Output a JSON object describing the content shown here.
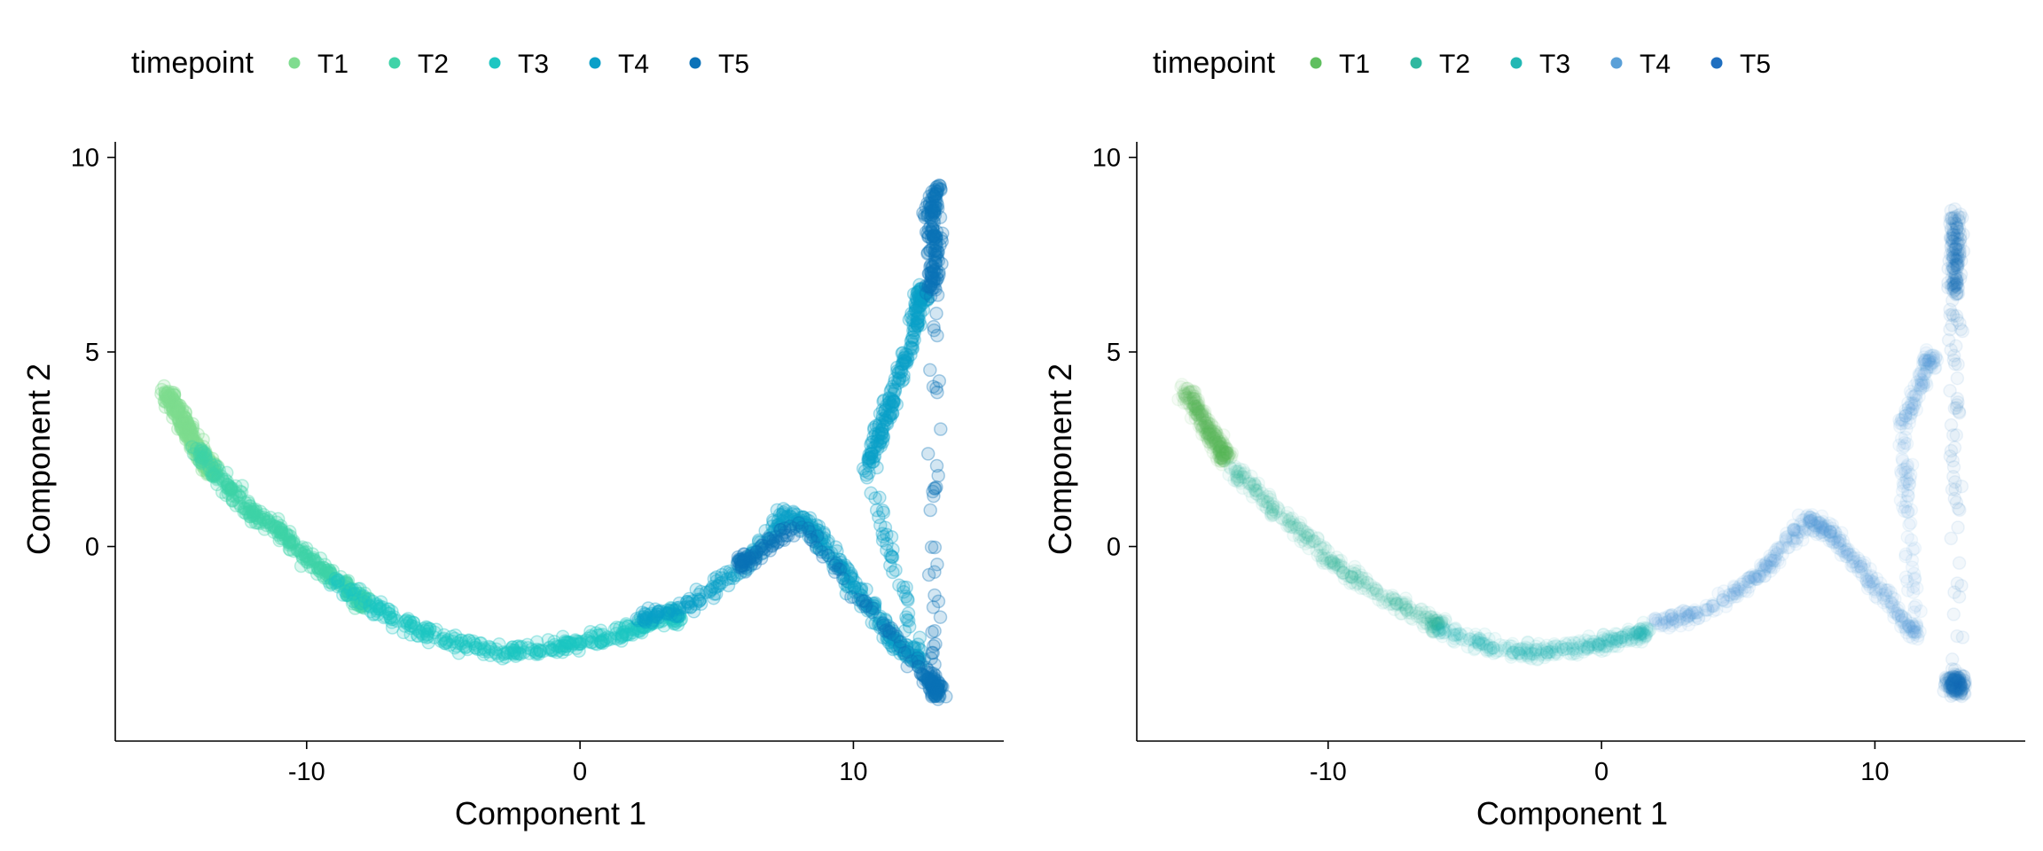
{
  "chart_data": [
    {
      "type": "scatter",
      "title": "",
      "xlabel": "Component 1",
      "ylabel": "Component 2",
      "xlim": [
        -17,
        15.5
      ],
      "ylim": [
        -5,
        10.4
      ],
      "xticks": [
        "-10",
        "0",
        "10"
      ],
      "xtick_values": [
        -10,
        0,
        10
      ],
      "yticks": [
        "0",
        "5",
        "10"
      ],
      "ytick_values": [
        0,
        5,
        10
      ],
      "legend": {
        "title": "timepoint",
        "position": "top",
        "entries": [
          "T1",
          "T2",
          "T3",
          "T4",
          "T5"
        ]
      },
      "series": [
        {
          "name": "T1",
          "color": "#7fdc8f",
          "points": [
            [
              -15.2,
              4.0
            ],
            [
              -14.8,
              3.6
            ],
            [
              -14.5,
              3.2
            ],
            [
              -14.3,
              2.8
            ],
            [
              -13.9,
              2.4
            ],
            [
              -13.5,
              2.0
            ]
          ]
        },
        {
          "name": "T2",
          "color": "#3fd3a8",
          "points": [
            [
              -14.0,
              2.5
            ],
            [
              -13.0,
              1.6
            ],
            [
              -12.0,
              0.9
            ],
            [
              -11.0,
              0.4
            ],
            [
              -10.0,
              -0.3
            ],
            [
              -9.0,
              -0.8
            ],
            [
              -8.0,
              -1.4
            ]
          ]
        },
        {
          "name": "T3",
          "color": "#1ec6c2",
          "points": [
            [
              -9.0,
              -0.9
            ],
            [
              -7.0,
              -1.8
            ],
            [
              -5.0,
              -2.4
            ],
            [
              -3.0,
              -2.7
            ],
            [
              -1.0,
              -2.6
            ],
            [
              0.5,
              -2.4
            ],
            [
              2.0,
              -2.1
            ],
            [
              3.5,
              -1.8
            ]
          ]
        },
        {
          "name": "T4",
          "color": "#0aa0c8",
          "points": [
            [
              2.0,
              -1.9
            ],
            [
              4.0,
              -1.5
            ],
            [
              6.0,
              -0.5
            ],
            [
              7.5,
              0.8
            ],
            [
              8.5,
              0.5
            ],
            [
              9.5,
              -0.5
            ],
            [
              10.5,
              -1.5
            ],
            [
              11.5,
              -2.5
            ],
            [
              12.5,
              -3.0
            ],
            [
              10.5,
              2.0
            ],
            [
              11.0,
              3.0
            ],
            [
              11.5,
              4.0
            ],
            [
              12.2,
              5.5
            ],
            [
              12.5,
              6.5
            ]
          ]
        },
        {
          "name": "T5",
          "color": "#0b72b8",
          "points": [
            [
              12.8,
              6.5
            ],
            [
              13.0,
              7.5
            ],
            [
              12.8,
              8.5
            ],
            [
              13.1,
              9.2
            ],
            [
              12.9,
              -3.5
            ],
            [
              13.1,
              -3.8
            ],
            [
              12.7,
              -3.3
            ],
            [
              8.0,
              0.6
            ],
            [
              6.0,
              -0.4
            ]
          ]
        }
      ]
    },
    {
      "type": "scatter",
      "title": "",
      "xlabel": "Component 1",
      "ylabel": "Component 2",
      "xlim": [
        -17,
        15.5
      ],
      "ylim": [
        -5,
        10.4
      ],
      "xticks": [
        "-10",
        "0",
        "10"
      ],
      "xtick_values": [
        -10,
        0,
        10
      ],
      "yticks": [
        "0",
        "5",
        "10"
      ],
      "ytick_values": [
        0,
        5,
        10
      ],
      "legend": {
        "title": "timepoint",
        "position": "top",
        "entries": [
          "T1",
          "T2",
          "T3",
          "T4",
          "T5"
        ]
      },
      "series": [
        {
          "name": "T1",
          "color": "#5fbf5f",
          "points": [
            [
              -15.2,
              4.0
            ],
            [
              -14.8,
              3.5
            ],
            [
              -14.4,
              3.0
            ],
            [
              -14.0,
              2.6
            ],
            [
              -13.8,
              2.3
            ]
          ]
        },
        {
          "name": "T2",
          "color": "#2fb8a0",
          "points": [
            [
              -13.5,
              2.0
            ],
            [
              -12.0,
              1.0
            ],
            [
              -10.0,
              -0.3
            ],
            [
              -8.0,
              -1.3
            ],
            [
              -6.0,
              -2.0
            ]
          ]
        },
        {
          "name": "T3",
          "color": "#22b8b4",
          "points": [
            [
              -6.0,
              -2.1
            ],
            [
              -4.0,
              -2.6
            ],
            [
              -2.0,
              -2.7
            ],
            [
              0.0,
              -2.5
            ],
            [
              1.5,
              -2.2
            ]
          ]
        },
        {
          "name": "T4",
          "color": "#5aa0d8",
          "points": [
            [
              2.0,
              -2.0
            ],
            [
              4.0,
              -1.6
            ],
            [
              6.0,
              -0.6
            ],
            [
              7.5,
              0.7
            ],
            [
              8.5,
              0.3
            ],
            [
              10.0,
              -1.0
            ],
            [
              11.5,
              -2.3
            ],
            [
              11.0,
              3.0
            ],
            [
              12.0,
              4.8
            ]
          ]
        },
        {
          "name": "T5",
          "color": "#1f6fc0",
          "points": [
            [
              12.9,
              6.5
            ],
            [
              13.0,
              7.5
            ],
            [
              12.9,
              8.5
            ],
            [
              13.0,
              -3.3
            ],
            [
              13.1,
              -3.7
            ],
            [
              12.8,
              -3.5
            ]
          ]
        }
      ]
    }
  ]
}
